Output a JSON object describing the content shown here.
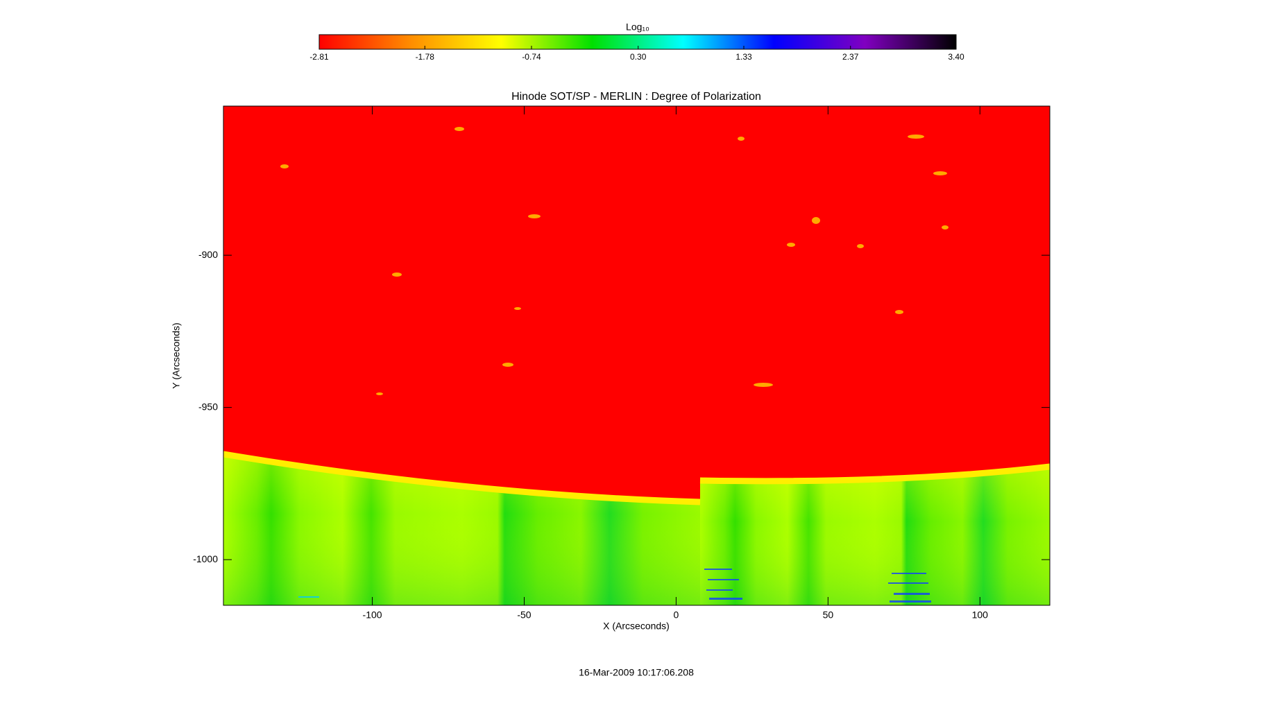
{
  "chart_data": {
    "type": "image",
    "title": "Hinode SOT/SP - MERLIN : Degree of Polarization",
    "xlabel": "X (Arcseconds)",
    "ylabel": "Y (Arcseconds)",
    "xlim": [
      -149,
      123
    ],
    "ylim": [
      -1015,
      -851
    ],
    "xticks": [
      -100,
      -50,
      0,
      50,
      100
    ],
    "yticks": [
      -900,
      -950,
      -1000
    ],
    "colorbar": {
      "label": "Log₁₀",
      "lim": [
        -2.81,
        3.4
      ],
      "ticks": [
        -2.81,
        -1.78,
        -0.74,
        {
          "value": 0.3,
          "label": "0.30"
        },
        1.33,
        2.37,
        {
          "value": 3.4,
          "label": "3.40"
        }
      ],
      "colors": [
        "#ff0000",
        "#ff8c00",
        "#ffff00",
        "#00e000",
        "#00ffff",
        "#0000ff",
        "#8000c0",
        "#000000"
      ]
    },
    "footer": "16-Mar-2009 10:17:06.208"
  }
}
